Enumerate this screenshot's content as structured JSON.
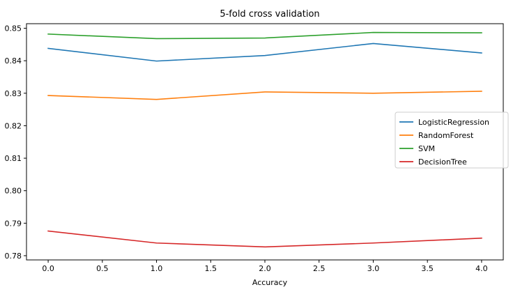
{
  "chart_data": {
    "type": "line",
    "title": "5-fold cross validation",
    "xlabel": "Accuracy",
    "ylabel": "",
    "x": [
      0.0,
      1.0,
      2.0,
      3.0,
      4.0
    ],
    "xlim": [
      -0.2,
      4.2
    ],
    "ylim": [
      0.7787,
      0.8514
    ],
    "xticks": [
      0.0,
      0.5,
      1.0,
      1.5,
      2.0,
      2.5,
      3.0,
      3.5,
      4.0
    ],
    "xtick_labels": [
      "0.0",
      "0.5",
      "1.0",
      "1.5",
      "2.0",
      "2.5",
      "3.0",
      "3.5",
      "4.0"
    ],
    "yticks": [
      0.78,
      0.79,
      0.8,
      0.81,
      0.82,
      0.83,
      0.84,
      0.85
    ],
    "ytick_labels": [
      "0.78",
      "0.79",
      "0.80",
      "0.81",
      "0.82",
      "0.83",
      "0.84",
      "0.85"
    ],
    "grid": false,
    "legend_position": "center-right",
    "series": [
      {
        "name": "LogisticRegression",
        "color": "#1f77b4",
        "values": [
          0.8438,
          0.8399,
          0.8416,
          0.8453,
          0.8424
        ]
      },
      {
        "name": "RandomForest",
        "color": "#ff7f0e",
        "values": [
          0.8293,
          0.8281,
          0.8304,
          0.83,
          0.8306
        ]
      },
      {
        "name": "SVM",
        "color": "#2ca02c",
        "values": [
          0.8482,
          0.8468,
          0.847,
          0.8487,
          0.8486
        ]
      },
      {
        "name": "DecisionTree",
        "color": "#d62728",
        "values": [
          0.7876,
          0.7839,
          0.7827,
          0.7839,
          0.7854
        ]
      }
    ]
  }
}
